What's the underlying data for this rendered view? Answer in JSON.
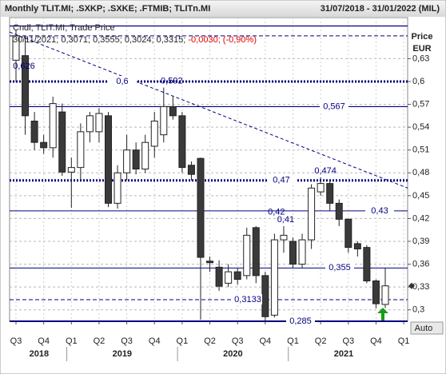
{
  "chart_data": {
    "type": "candlestick",
    "title": "Monthly TLIT.MI; .SXKP; .SXKE; .FTMIB; TLITn.MI",
    "date_range": "31/07/2018 - 31/01/2022 (MIL)",
    "legend_line": "Cndl; TLIT.MI; Trade Price",
    "last_quote": "30/11/2021; 0,3071; 0,3555; 0,3024; 0,3315; ",
    "last_change": "-0,0030; (-0,90%)",
    "y_label": "Price",
    "y_unit": "EUR",
    "scale_button": "Auto",
    "open": [
      0.628,
      0.634,
      0.548,
      0.52,
      0.513,
      0.56,
      0.481,
      0.487,
      0.534,
      0.534,
      0.555,
      0.44,
      0.48,
      0.51,
      0.485,
      0.515,
      0.53,
      0.567,
      0.555,
      0.49,
      0.499,
      0.364,
      0.356,
      0.335,
      0.35,
      0.345,
      0.408,
      0.345,
      0.293,
      0.392,
      0.39,
      0.36,
      0.392,
      0.455,
      0.466,
      0.44,
      0.419,
      0.387,
      0.382,
      0.338,
      0.3071
    ],
    "high": [
      0.668,
      0.66,
      0.56,
      0.53,
      0.58,
      0.571,
      0.5,
      0.545,
      0.56,
      0.565,
      0.56,
      0.49,
      0.53,
      0.52,
      0.53,
      0.56,
      0.592,
      0.58,
      0.56,
      0.495,
      0.5,
      0.37,
      0.365,
      0.36,
      0.355,
      0.408,
      0.41,
      0.35,
      0.4,
      0.41,
      0.395,
      0.4,
      0.465,
      0.474,
      0.47,
      0.445,
      0.42,
      0.39,
      0.385,
      0.34,
      0.3555
    ],
    "low": [
      0.6,
      0.53,
      0.51,
      0.505,
      0.5,
      0.476,
      0.434,
      0.47,
      0.52,
      0.52,
      0.435,
      0.433,
      0.47,
      0.478,
      0.48,
      0.5,
      0.52,
      0.55,
      0.48,
      0.47,
      0.287,
      0.35,
      0.325,
      0.33,
      0.333,
      0.34,
      0.335,
      0.285,
      0.29,
      0.375,
      0.355,
      0.355,
      0.38,
      0.45,
      0.43,
      0.41,
      0.375,
      0.37,
      0.335,
      0.302,
      0.3024
    ],
    "close": [
      0.66,
      0.555,
      0.52,
      0.513,
      0.571,
      0.481,
      0.487,
      0.534,
      0.555,
      0.558,
      0.44,
      0.48,
      0.51,
      0.485,
      0.52,
      0.548,
      0.567,
      0.555,
      0.487,
      0.478,
      0.369,
      0.362,
      0.331,
      0.35,
      0.34,
      0.398,
      0.345,
      0.291,
      0.392,
      0.398,
      0.36,
      0.392,
      0.46,
      0.466,
      0.44,
      0.419,
      0.382,
      0.38,
      0.338,
      0.308,
      0.3315
    ],
    "up_color": "#ffffff",
    "down_color": "#3a3a3a",
    "xtick_labels": [
      "Q3",
      "Q4",
      "Q1",
      "Q2",
      "Q3",
      "Q4",
      "Q1",
      "Q2",
      "Q3",
      "Q4",
      "Q1",
      "Q2",
      "Q3",
      "Q4",
      "Q1"
    ],
    "years": [
      "2018",
      "2019",
      "2020",
      "2021"
    ],
    "ylim": [
      0.285,
      0.684
    ],
    "yticks": [
      {
        "value": 0.63,
        "label": "0,63"
      },
      {
        "value": 0.6,
        "label": "0,6"
      },
      {
        "value": 0.57,
        "label": "0,57"
      },
      {
        "value": 0.54,
        "label": "0,54"
      },
      {
        "value": 0.51,
        "label": "0,51"
      },
      {
        "value": 0.48,
        "label": "0,48"
      },
      {
        "value": 0.45,
        "label": "0,45"
      },
      {
        "value": 0.42,
        "label": "0,42"
      },
      {
        "value": 0.39,
        "label": "0,39"
      },
      {
        "value": 0.36,
        "label": "0,36"
      },
      {
        "value": 0.33,
        "label": "0,33"
      },
      {
        "value": 0.3,
        "label": "0,3"
      }
    ],
    "grid": true,
    "levels": [
      {
        "value": 0.673
      },
      {
        "value": 0.66
      },
      {
        "value": 0.6,
        "label": "0,6"
      },
      {
        "value": 0.567,
        "label": "0,567"
      },
      {
        "value": 0.47,
        "label": "0,47"
      },
      {
        "value": 0.43,
        "label": "0,43"
      },
      {
        "value": 0.355,
        "label": "0,355"
      },
      {
        "value": 0.3133,
        "label": "0,3133"
      },
      {
        "value": 0.285,
        "label": "0,285"
      }
    ],
    "extremes": [
      {
        "value": 0.626,
        "label": "0,626"
      },
      {
        "value": 0.592,
        "label": "0,592"
      },
      {
        "value": 0.474,
        "label": "0,474"
      },
      {
        "value": 0.42,
        "label": "0,42"
      },
      {
        "value": 0.41,
        "label": "0,41"
      }
    ],
    "trendline": [
      0.665,
      0.46
    ]
  }
}
